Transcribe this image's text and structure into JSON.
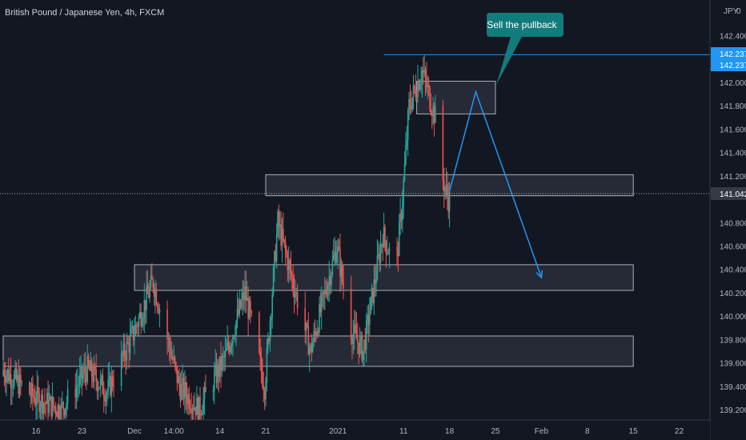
{
  "header": {
    "symbol_title": "British Pound / Japanese Yen, 4h, FXCM"
  },
  "price_axis": {
    "currency": "JPY",
    "scale_mode": "0",
    "ticks": [
      "142.400",
      "142.000",
      "141.800",
      "141.600",
      "141.400",
      "141.200",
      "140.800",
      "140.600",
      "140.400",
      "140.200",
      "140.000",
      "139.800",
      "139.600",
      "139.400",
      "139.200"
    ],
    "highlight_labels": [
      "142.237",
      "142.237"
    ],
    "current_price_label": "141.042"
  },
  "time_axis": {
    "ticks": [
      "16",
      "23",
      "Dec",
      "14:00",
      "14",
      "21",
      "2021",
      "11",
      "18",
      "25",
      "Feb",
      "8",
      "15",
      "22"
    ]
  },
  "annotation": {
    "callout_text": "Sell the pullback"
  },
  "colors": {
    "background": "#131722",
    "up_candle": "#26a69a",
    "down_candle": "#ef5350",
    "zone_fill": "#2a2e39",
    "zone_border": "#d1d4dc",
    "arrow": "#2196f3",
    "callout": "#127b7c",
    "axis_text": "#b2b5be"
  },
  "chart_data": {
    "type": "candlestick",
    "title": "British Pound / Japanese Yen, 4h, FXCM",
    "y_unit": "JPY",
    "ylim": [
      139.1,
      142.65
    ],
    "grid": false,
    "drawing_tools": {
      "zones": [
        {
          "name": "supply-zone-top",
          "from": "2021-01-13",
          "to": "2021-01-25",
          "y_low": 141.73,
          "y_high": 142.01
        },
        {
          "name": "pullback-zone",
          "from": "2020-12-21",
          "to": "2021-02-15",
          "y_low": 141.03,
          "y_high": 141.21
        },
        {
          "name": "support-zone-mid",
          "from": "2020-12-01",
          "to": "2021-02-15",
          "y_low": 140.22,
          "y_high": 140.44
        },
        {
          "name": "support-zone-low",
          "from": "2020-11-11",
          "to": "2021-02-15",
          "y_low": 139.57,
          "y_high": 139.83
        }
      ],
      "horizontal_line": {
        "y": 142.237
      },
      "projected_path": [
        {
          "date": "2021-01-18",
          "y": 141.07
        },
        {
          "date": "2021-01-22",
          "y": 141.92
        },
        {
          "date": "2021-02-01",
          "y": 140.33
        }
      ]
    },
    "candles": {
      "start_date": "2020-11-11",
      "end_date": "2021-01-18",
      "open": 139.5,
      "close": 141.0,
      "high": 142.237,
      "low": 139.1
    }
  }
}
